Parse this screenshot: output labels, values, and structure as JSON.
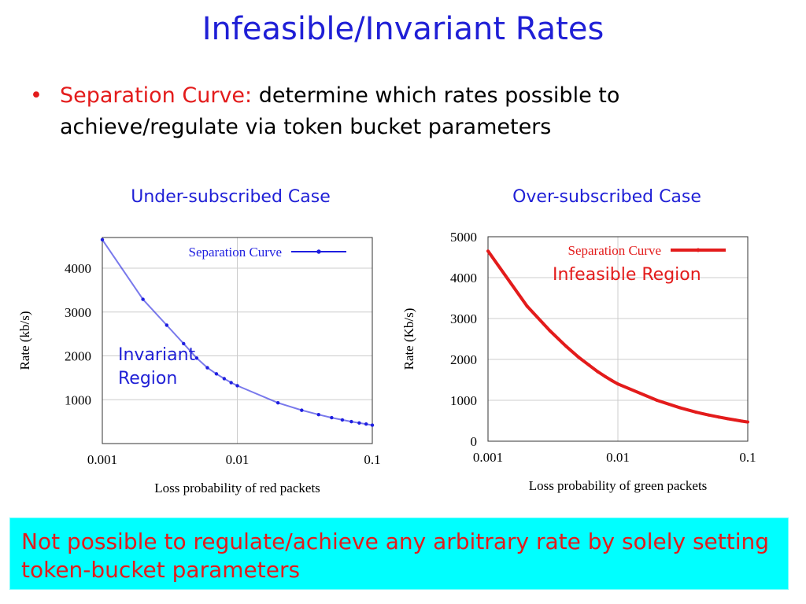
{
  "slide": {
    "title": "Infeasible/Invariant  Rates",
    "bullet": {
      "marker": "•",
      "highlight": "Separation Curve:",
      "rest": " determine which rates possible to achieve/regulate via token bucket parameters"
    },
    "note": "Not possible to regulate/achieve any arbitrary rate by solely setting token-bucket parameters",
    "left_caption": "Under-subscribed Case",
    "right_caption": "Over-subscribed Case",
    "left_region_label": [
      "Invariant",
      "Region"
    ],
    "right_region_label": "Infeasible Region"
  },
  "colors": {
    "title": "#1f1fd6",
    "accent_red": "#e31b1b",
    "note_bg": "#00ffff",
    "left_series": "#1f1fe0",
    "right_series": "#e31b1b"
  },
  "chart_data": [
    {
      "type": "line",
      "xscale": "log",
      "xlabel": "Loss probability of red packets",
      "ylabel": "Rate (kb/s)",
      "xlim": [
        0.001,
        0.1
      ],
      "ylim": [
        0,
        4700
      ],
      "xticks": [
        "0.001",
        "0.01",
        "0.1"
      ],
      "yticks": [
        "1000",
        "2000",
        "3000",
        "4000"
      ],
      "grid": true,
      "legend": "top-right",
      "series": [
        {
          "name": "Separation Curve",
          "x": [
            0.001,
            0.002,
            0.003,
            0.004,
            0.005,
            0.006,
            0.007,
            0.008,
            0.009,
            0.01,
            0.02,
            0.03,
            0.04,
            0.05,
            0.06,
            0.07,
            0.08,
            0.09,
            0.1
          ],
          "y": [
            4650,
            3290,
            2700,
            2280,
            1950,
            1730,
            1590,
            1480,
            1390,
            1320,
            930,
            760,
            660,
            590,
            540,
            500,
            470,
            445,
            420
          ]
        }
      ]
    },
    {
      "type": "line",
      "xscale": "log",
      "xlabel": "Loss probability of green packets",
      "ylabel": "Rate (Kb/s)",
      "xlim": [
        0.001,
        0.1
      ],
      "ylim": [
        0,
        5000
      ],
      "xticks": [
        "0.001",
        "0.01",
        "0.1"
      ],
      "yticks": [
        "0",
        "1000",
        "2000",
        "3000",
        "4000",
        "5000"
      ],
      "grid": true,
      "legend": "top-right",
      "series": [
        {
          "name": "Separation Curve",
          "x": [
            0.001,
            0.002,
            0.003,
            0.004,
            0.005,
            0.006,
            0.007,
            0.008,
            0.009,
            0.01,
            0.02,
            0.03,
            0.04,
            0.05,
            0.06,
            0.07,
            0.08,
            0.09,
            0.1
          ],
          "y": [
            4650,
            3300,
            2700,
            2320,
            2050,
            1860,
            1700,
            1580,
            1480,
            1400,
            1000,
            820,
            710,
            640,
            590,
            550,
            520,
            490,
            470
          ]
        }
      ]
    }
  ]
}
